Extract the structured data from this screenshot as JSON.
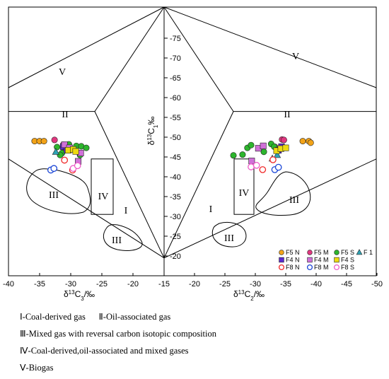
{
  "chart_data": {
    "type": "scatter",
    "left_panel": {
      "xlabel_parts": [
        "δ",
        "13",
        "C",
        "3",
        "/‰"
      ],
      "xlim": [
        -40,
        -15
      ],
      "xticks": [
        "-40",
        "-35",
        "-30",
        "-25",
        "-20",
        "-15"
      ]
    },
    "right_panel": {
      "xlabel_parts": [
        "δ",
        "13",
        "C",
        "2",
        "/‰"
      ],
      "xlim": [
        -15,
        -50
      ],
      "xticks": [
        "-20",
        "-25",
        "-30",
        "-35",
        "-40",
        "-45",
        "-50"
      ]
    },
    "shared_y": {
      "ylabel_parts": [
        "δ",
        "13",
        "C",
        "1",
        "‰"
      ],
      "ylim": [
        -15,
        -80
      ],
      "yticks": [
        "-20",
        "-25",
        "-30",
        "-35",
        "-40",
        "-45",
        "-50",
        "-55",
        "-60",
        "-65",
        "-70",
        "-75"
      ]
    },
    "regions": {
      "I": "I",
      "II": "II",
      "III": "III",
      "IV": "IV",
      "V": "V"
    },
    "series": [
      {
        "name": "F5 N",
        "marker": "circle",
        "color": "#F2A318",
        "filled": true,
        "left": [
          [
            -35.8,
            -49
          ],
          [
            -35,
            -49
          ],
          [
            -34.3,
            -49
          ]
        ],
        "right": [
          [
            -37.8,
            -49
          ],
          [
            -38.8,
            -49
          ],
          [
            -39.1,
            -48.6
          ]
        ]
      },
      {
        "name": "F5 M",
        "marker": "circle",
        "color": "#E0377F",
        "filled": true,
        "left": [
          [
            -32.6,
            -49.3
          ],
          [
            -31.2,
            -48.1
          ],
          [
            -30.9,
            -47.2
          ]
        ],
        "right": [
          [
            -34.4,
            -49.4
          ],
          [
            -34.7,
            -49.3
          ],
          [
            -33.2,
            -47.6
          ]
        ]
      },
      {
        "name": "F5 S",
        "marker": "circle",
        "color": "#2DB52D",
        "filled": true,
        "left": [
          [
            -32.2,
            -47.5
          ],
          [
            -31.4,
            -46
          ],
          [
            -30.3,
            -48.2
          ],
          [
            -29.1,
            -47.8
          ],
          [
            -28.3,
            -47.7
          ],
          [
            -27.5,
            -47.3
          ],
          [
            -28.5,
            -45.5
          ],
          [
            -31.7,
            -45.5
          ]
        ],
        "right": [
          [
            -26.4,
            -45.4
          ],
          [
            -27.9,
            -45.6
          ],
          [
            -28.7,
            -47.3
          ],
          [
            -29.3,
            -48
          ],
          [
            -32.6,
            -48.3
          ],
          [
            -33.1,
            -47.6
          ],
          [
            -31.4,
            -46.3
          ]
        ]
      },
      {
        "name": "F 1",
        "marker": "triangle",
        "color": "#2FA3B5",
        "filled": true,
        "left": [
          [
            -32.4,
            -46.3
          ],
          [
            -30.8,
            -47.7
          ]
        ],
        "right": [
          [
            -32.8,
            -44.6
          ],
          [
            -33.6,
            -45.5
          ]
        ]
      },
      {
        "name": "F4 N",
        "marker": "square",
        "color": "#5B2AD0",
        "filled": true,
        "left": [
          [
            -31.2,
            -47.6
          ],
          [
            -30.6,
            -46.7
          ]
        ],
        "right": [
          [
            -33.8,
            -46.7
          ],
          [
            -34.3,
            -47.6
          ]
        ]
      },
      {
        "name": "F4 M",
        "marker": "square",
        "color": "#D070D8",
        "filled": true,
        "left": [
          [
            -31,
            -48.1
          ],
          [
            -30.2,
            -47.3
          ],
          [
            -28.8,
            -43.9
          ],
          [
            -28.4,
            -46
          ]
        ],
        "right": [
          [
            -30.5,
            -47.2
          ],
          [
            -31.3,
            -47.8
          ],
          [
            -29.4,
            -44
          ]
        ]
      },
      {
        "name": "F4 S",
        "marker": "square",
        "color": "#EDDA10",
        "filled": true,
        "left": [
          [
            -30.4,
            -46.7
          ],
          [
            -29.6,
            -46.9
          ],
          [
            -29.2,
            -46.4
          ]
        ],
        "right": [
          [
            -33.5,
            -46.6
          ],
          [
            -34.2,
            -47.1
          ],
          [
            -35,
            -47.3
          ]
        ]
      },
      {
        "name": "F8 N",
        "marker": "circle",
        "color": "#F02828",
        "filled": false,
        "left": [
          [
            -31,
            -44.2
          ],
          [
            -29.7,
            -41.7
          ]
        ],
        "right": [
          [
            -31.2,
            -41.8
          ],
          [
            -32.9,
            -44.3
          ]
        ]
      },
      {
        "name": "F8 M",
        "marker": "circle",
        "color": "#1A46D6",
        "filled": false,
        "left": [
          [
            -33.2,
            -41.7
          ],
          [
            -32.7,
            -42.1
          ]
        ],
        "right": [
          [
            -33.2,
            -41.8
          ],
          [
            -33.8,
            -42.4
          ]
        ]
      },
      {
        "name": "F8 S",
        "marker": "circle",
        "color": "#EE5CC8",
        "filled": false,
        "left": [
          [
            -29.6,
            -42.1
          ],
          [
            -28.9,
            -42.8
          ]
        ],
        "right": [
          [
            -29.3,
            -42.5
          ],
          [
            -30.2,
            -42.9
          ]
        ]
      }
    ]
  },
  "notes": {
    "n1": "Ⅰ-Coal-derived gas      Ⅱ-Oil-associated gas",
    "n3": "Ⅲ-Mixed gas with reversal carbon isotopic composition",
    "n4": "Ⅳ-Coal-derived,oil-associated and mixed gases",
    "n5": "Ⅴ-Biogas"
  }
}
